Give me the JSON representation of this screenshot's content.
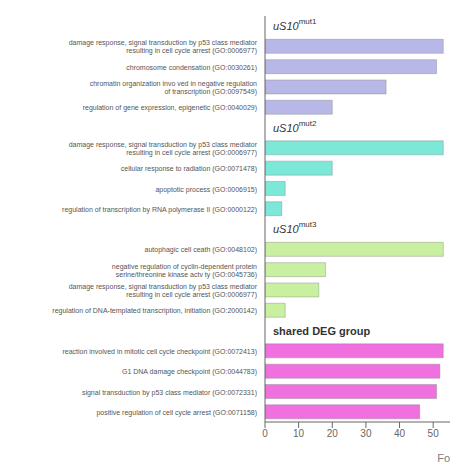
{
  "chart_data": {
    "type": "bar",
    "orientation": "horizontal",
    "xlabel": "Fo",
    "xlim": [
      0,
      55
    ],
    "xticks": [
      0,
      10,
      20,
      30,
      40,
      50
    ],
    "groups": [
      {
        "label": "uS10",
        "superscript": "mut1",
        "color": "#b8b8e8",
        "categories": [
          "damage response, signal transduction by p53 class mediator\nresulting in cell cycle arrest (GO:0006977)",
          "chromosome condensation (GO:0030261)",
          "chromatin organization invo ved in negative regulation\nof transcription (GO:0097549)",
          "regulation of gene expression, epigenetic (GO:0040029)"
        ],
        "values": [
          53,
          51,
          36,
          20
        ]
      },
      {
        "label": "uS10",
        "superscript": "mut2",
        "color": "#7de8d8",
        "categories": [
          "damage response, signal transduction by p53 class mediator\nresulting in cell cycle arrest (GO:0006977)",
          "cellular response to radiation (GO:0071478)",
          "apoptotic process (GO:0006915)",
          "regulation of transcription by RNA polymerase II (GO:0000122)"
        ],
        "values": [
          53,
          20,
          6,
          5
        ]
      },
      {
        "label": "uS10",
        "superscript": "mut3",
        "color": "#c8f0a0",
        "categories": [
          "autophagic cell ceath (GO:0048102)",
          "negative regulation of cyclin-dependent protein\nserine/threonine kinase actv ty (GO:0045736)",
          "damage response, signal transduction by p53 class mediator\nresulting in cell cycle arrest (GO:0006977)",
          "regulation of DNA-templated transcription, initiation (GO:2000142)"
        ],
        "values": [
          53,
          18,
          16,
          6
        ]
      },
      {
        "label": "shared DEG group",
        "color": "#f070e0",
        "categories": [
          "reaction involved in mitotic cell cycle checkpoint (GO:0072413)",
          "G1 DNA damage checkpoint (GO:0044783)",
          "signal transduction by p53 class mediator (GO:0072331)",
          "positive regulation of cell cycle arrest (GO:0071158)"
        ],
        "values": [
          53,
          52,
          51,
          46
        ]
      }
    ]
  }
}
